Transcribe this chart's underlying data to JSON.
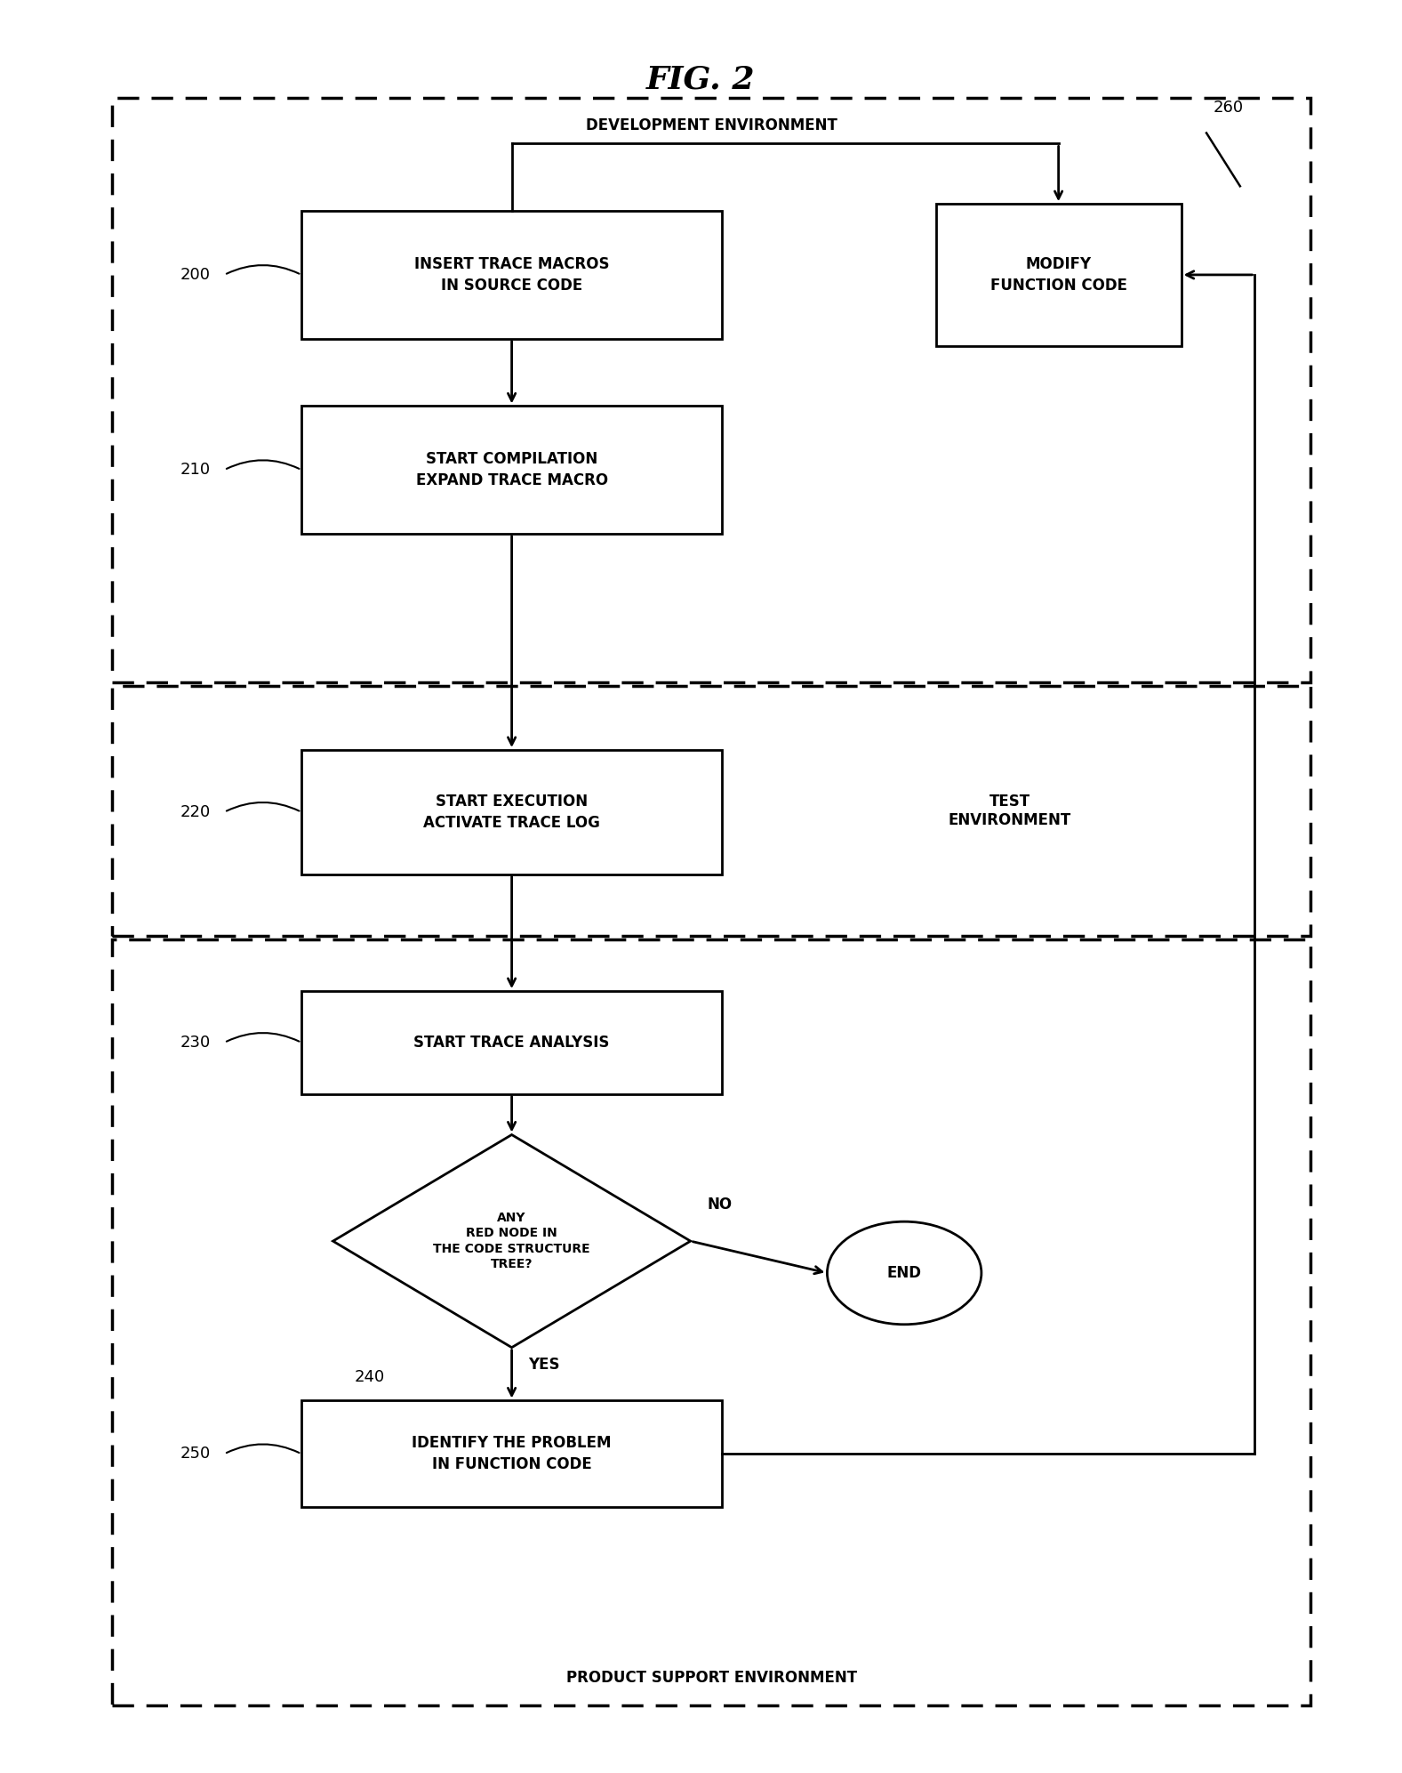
{
  "title": "FIG. 2",
  "bg_color": "#ffffff",
  "dev_env_label": "DEVELOPMENT ENVIRONMENT",
  "test_env_label": "TEST\nENVIRONMENT",
  "prod_env_label": "PRODUCT SUPPORT ENVIRONMENT",
  "box200_text": "INSERT TRACE MACROS\nIN SOURCE CODE",
  "box210_text": "START COMPILATION\nEXPAND TRACE MACRO",
  "box220_text": "START EXECUTION\nACTIVATE TRACE LOG",
  "box230_text": "START TRACE ANALYSIS",
  "box260_text": "MODIFY\nFUNCTION CODE",
  "box250_text": "IDENTIFY THE PROBLEM\nIN FUNCTION CODE",
  "diamond_text": "ANY\nRED NODE IN\nTHE CODE STRUCTURE\nTREE?",
  "end_text": "END",
  "label200": "200",
  "label210": "210",
  "label220": "220",
  "label230": "230",
  "label240": "240",
  "label250": "250",
  "label260": "260",
  "yes_text": "YES",
  "no_text": "NO"
}
